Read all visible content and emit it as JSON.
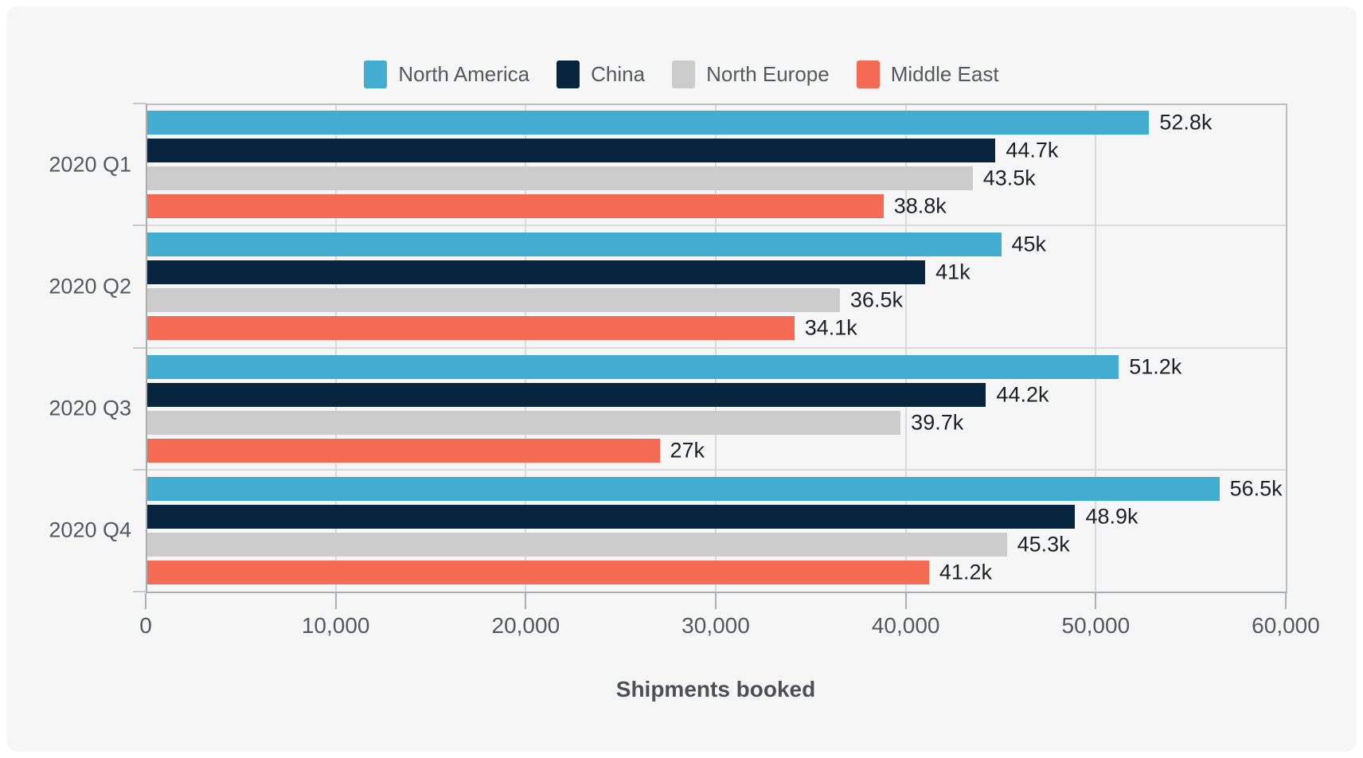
{
  "panel": {
    "background": "#f6f6f6",
    "page_background": "#ffffff"
  },
  "colors": {
    "axis_line": "#aaadb0",
    "frame_line": "#bcbec0",
    "gridline": "#d9dadb",
    "value_label_text": "#1e2125",
    "axis_label_text": "#55585c",
    "axis_title_text": "#4c5054"
  },
  "chart_data": {
    "type": "bar",
    "orientation": "horizontal",
    "title": "",
    "xlabel": "Shipments booked",
    "ylabel": "",
    "xlim": [
      0,
      60000
    ],
    "grid": true,
    "legend_position": "top",
    "categories": [
      "2020 Q1",
      "2020 Q2",
      "2020 Q3",
      "2020 Q4"
    ],
    "x_ticks": [
      {
        "value": 0,
        "label": "0"
      },
      {
        "value": 10000,
        "label": "10,000"
      },
      {
        "value": 20000,
        "label": "20,000"
      },
      {
        "value": 30000,
        "label": "30,000"
      },
      {
        "value": 40000,
        "label": "40,000"
      },
      {
        "value": 50000,
        "label": "50,000"
      },
      {
        "value": 60000,
        "label": "60,000"
      }
    ],
    "series": [
      {
        "name": "North America",
        "color": "#42acd1",
        "values": [
          52800,
          45000,
          51200,
          56500
        ],
        "labels": [
          "52.8k",
          "45k",
          "51.2k",
          "56.5k"
        ]
      },
      {
        "name": "China",
        "color": "#07253e",
        "values": [
          44700,
          41000,
          44200,
          48900
        ],
        "labels": [
          "44.7k",
          "41k",
          "44.2k",
          "48.9k"
        ]
      },
      {
        "name": "North Europe",
        "color": "#cccccc",
        "values": [
          43500,
          36500,
          39700,
          45300
        ],
        "labels": [
          "43.5k",
          "36.5k",
          "39.7k",
          "45.3k"
        ]
      },
      {
        "name": "Middle East",
        "color": "#f56a52",
        "values": [
          38800,
          34100,
          27000,
          41200
        ],
        "labels": [
          "38.8k",
          "34.1k",
          "27k",
          "41.2k"
        ]
      }
    ]
  }
}
